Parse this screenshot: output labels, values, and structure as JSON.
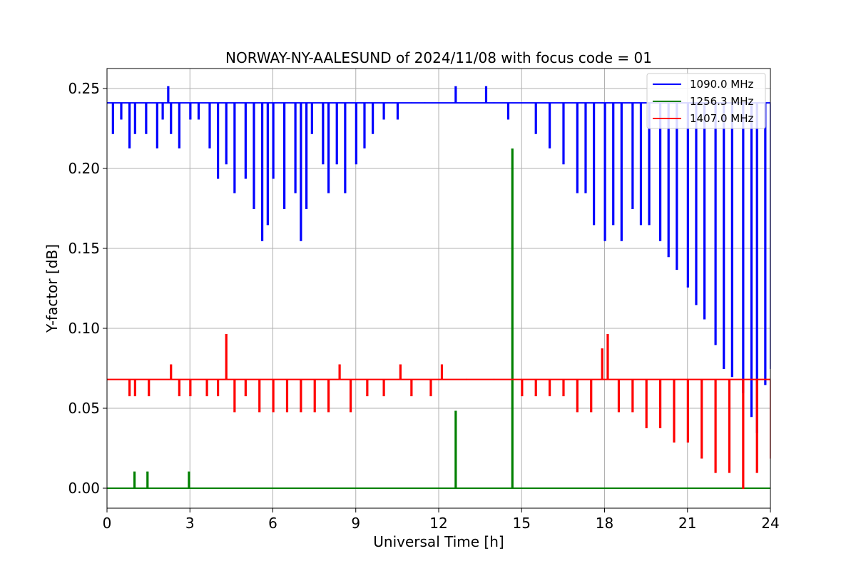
{
  "chart_data": {
    "type": "line",
    "title": "NORWAY-NY-AALESUND of 2024/11/08 with focus code = 01",
    "xlabel": "Universal Time [h]",
    "ylabel": "Y-factor [dB]",
    "xlim": [
      0,
      24
    ],
    "ylim": [
      -0.0125,
      0.2625
    ],
    "xticks": [
      0,
      3,
      6,
      9,
      12,
      15,
      18,
      21,
      24
    ],
    "xtick_labels": [
      "0",
      "3",
      "6",
      "9",
      "12",
      "15",
      "18",
      "21",
      "24"
    ],
    "yticks": [
      0.0,
      0.05,
      0.1,
      0.15,
      0.2,
      0.25
    ],
    "ytick_labels": [
      "0.00",
      "0.05",
      "0.10",
      "0.15",
      "0.20",
      "0.25"
    ],
    "grid": true,
    "legend_position": "top-right",
    "series": [
      {
        "name": "1090.0 MHz",
        "color": "#0000ff",
        "baseline": 0.241,
        "x": [
          0.0,
          0.2,
          0.5,
          0.8,
          1.0,
          1.4,
          1.8,
          2.0,
          2.2,
          2.3,
          2.6,
          3.0,
          3.3,
          3.7,
          4.0,
          4.3,
          4.6,
          5.0,
          5.3,
          5.6,
          5.8,
          6.0,
          6.4,
          6.8,
          7.0,
          7.2,
          7.4,
          7.8,
          8.0,
          8.3,
          8.6,
          9.0,
          9.3,
          9.6,
          10.0,
          10.5,
          11.0,
          11.5,
          12.0,
          12.6,
          13.0,
          13.7,
          14.0,
          14.5,
          15.0,
          15.5,
          16.0,
          16.5,
          17.0,
          17.3,
          17.6,
          18.0,
          18.3,
          18.6,
          19.0,
          19.3,
          19.6,
          20.0,
          20.3,
          20.6,
          21.0,
          21.3,
          21.6,
          22.0,
          22.3,
          22.6,
          23.0,
          23.3,
          23.5,
          23.8,
          24.0
        ],
        "y": [
          0.241,
          0.222,
          0.231,
          0.213,
          0.222,
          0.222,
          0.213,
          0.231,
          0.251,
          0.222,
          0.213,
          0.231,
          0.231,
          0.213,
          0.194,
          0.203,
          0.185,
          0.194,
          0.175,
          0.155,
          0.165,
          0.194,
          0.175,
          0.185,
          0.155,
          0.175,
          0.222,
          0.203,
          0.185,
          0.203,
          0.185,
          0.203,
          0.213,
          0.222,
          0.231,
          0.231,
          0.241,
          0.241,
          0.241,
          0.251,
          0.241,
          0.251,
          0.241,
          0.231,
          0.241,
          0.222,
          0.213,
          0.203,
          0.185,
          0.185,
          0.165,
          0.155,
          0.165,
          0.155,
          0.175,
          0.165,
          0.165,
          0.155,
          0.145,
          0.137,
          0.126,
          0.115,
          0.106,
          0.09,
          0.075,
          0.07,
          0.06,
          0.045,
          0.035,
          0.065,
          0.075
        ]
      },
      {
        "name": "1256.3 MHz",
        "color": "#008000",
        "baseline": 0.0,
        "x": [
          0.0,
          0.98,
          1.45,
          2.95,
          12.6,
          14.65,
          24.0
        ],
        "y": [
          0.0,
          0.01,
          0.01,
          0.01,
          0.048,
          0.212,
          0.0
        ]
      },
      {
        "name": "1407.0 MHz",
        "color": "#ff0000",
        "baseline": 0.068,
        "x": [
          0.0,
          0.8,
          1.0,
          1.5,
          2.3,
          2.6,
          3.0,
          3.6,
          4.0,
          4.3,
          4.6,
          5.0,
          5.5,
          6.0,
          6.5,
          7.0,
          7.5,
          8.0,
          8.4,
          8.8,
          9.4,
          10.0,
          10.6,
          11.0,
          11.7,
          12.1,
          13.0,
          14.0,
          15.0,
          15.5,
          16.0,
          16.5,
          17.0,
          17.5,
          17.9,
          18.1,
          18.5,
          19.0,
          19.5,
          20.0,
          20.5,
          21.0,
          21.5,
          22.0,
          22.5,
          23.0,
          23.5,
          24.0
        ],
        "y": [
          0.068,
          0.058,
          0.058,
          0.058,
          0.077,
          0.058,
          0.058,
          0.058,
          0.058,
          0.096,
          0.048,
          0.058,
          0.048,
          0.048,
          0.048,
          0.048,
          0.048,
          0.048,
          0.077,
          0.048,
          0.058,
          0.058,
          0.077,
          0.058,
          0.058,
          0.077,
          0.068,
          0.068,
          0.058,
          0.058,
          0.058,
          0.058,
          0.048,
          0.048,
          0.087,
          0.096,
          0.048,
          0.048,
          0.038,
          0.038,
          0.029,
          0.029,
          0.019,
          0.01,
          0.01,
          0.0,
          0.01,
          0.019
        ]
      }
    ]
  }
}
